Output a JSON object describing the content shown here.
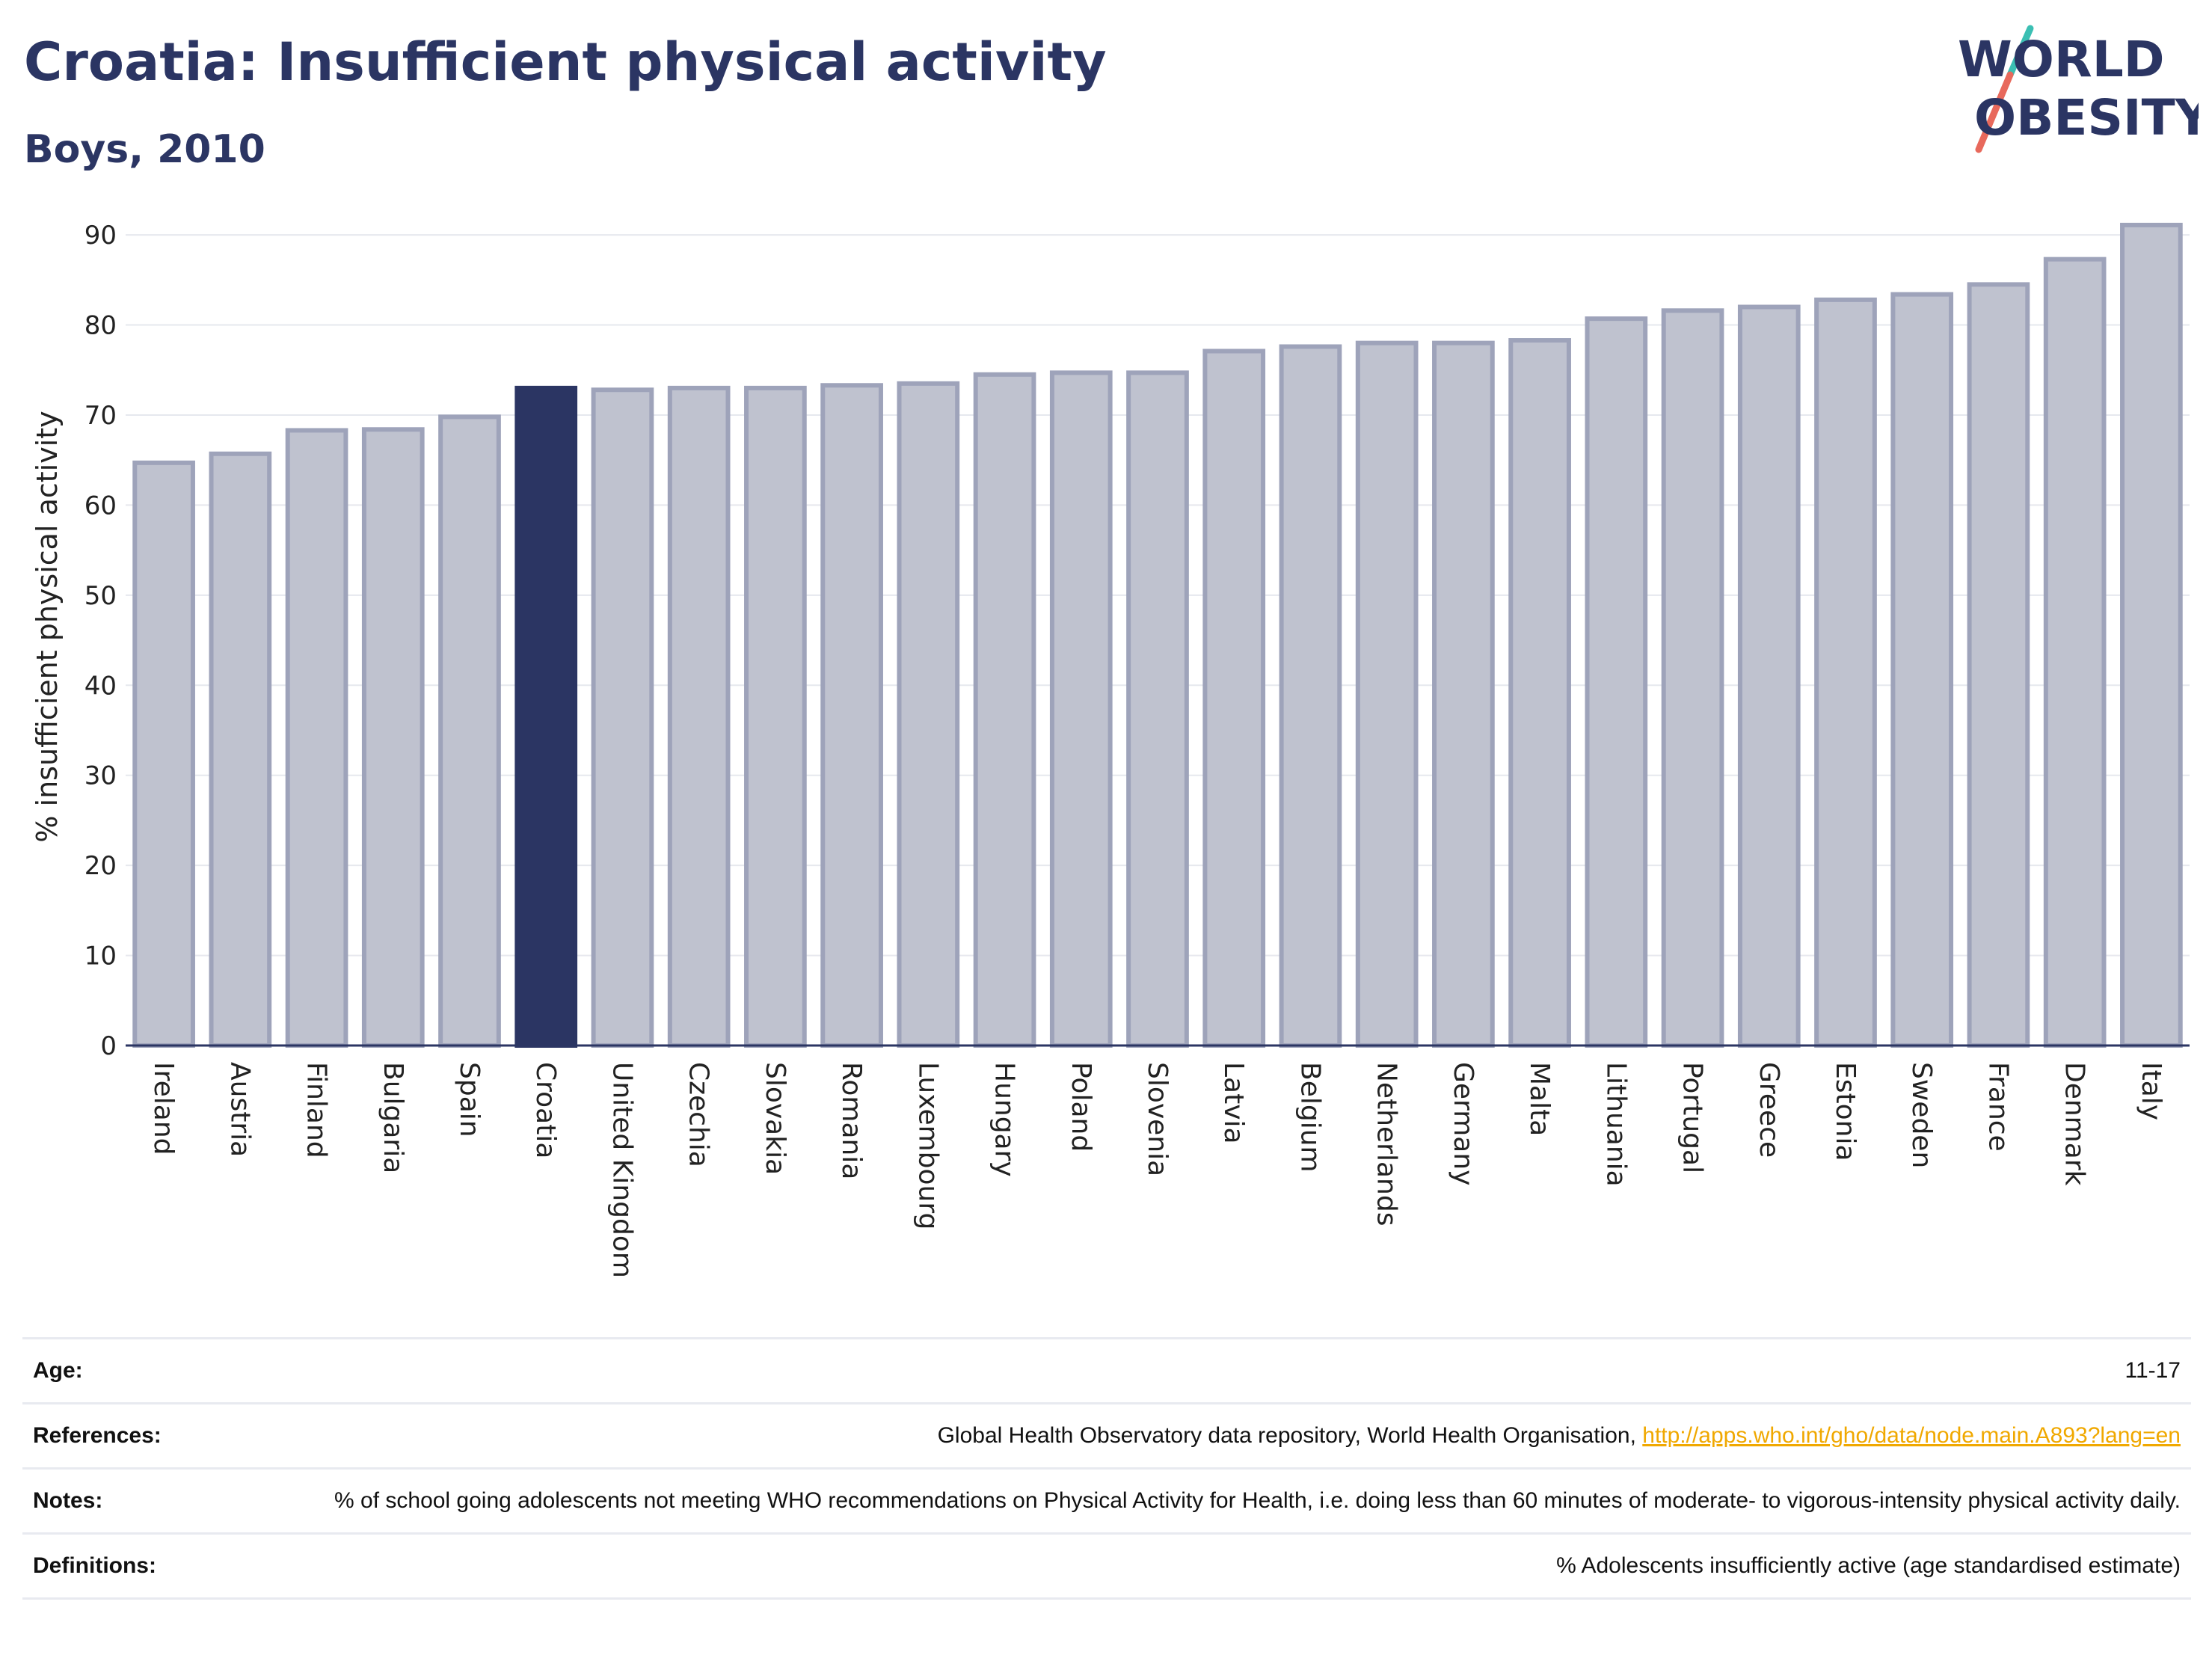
{
  "header": {
    "title": "Croatia: Insufficient physical activity",
    "subtitle": "Boys, 2010"
  },
  "logo": {
    "text_line1": "WORLD",
    "text_line2": "OBESITY",
    "colors": {
      "text": "#2b3563",
      "slash_top": "#3bbfb3",
      "slash_bottom": "#e8695c"
    }
  },
  "chart_data": {
    "type": "bar",
    "ylabel": "% insufficient physical activity",
    "xlabel": "",
    "ylim": [
      0,
      93
    ],
    "yticks": [
      0,
      10,
      20,
      30,
      40,
      50,
      60,
      70,
      80,
      90
    ],
    "grid": true,
    "highlight": "Croatia",
    "colors": {
      "bar": "#bfc2cf",
      "bar_edge": "#9ea3ba",
      "highlight": "#2b3563",
      "grid": "#e6e8ee",
      "axis": "#2b3563"
    },
    "categories": [
      "Ireland",
      "Austria",
      "Finland",
      "Bulgaria",
      "Spain",
      "Croatia",
      "United Kingdom",
      "Czechia",
      "Slovakia",
      "Romania",
      "Luxembourg",
      "Hungary",
      "Poland",
      "Slovenia",
      "Latvia",
      "Belgium",
      "Netherlands",
      "Germany",
      "Malta",
      "Lithuania",
      "Portugal",
      "Greece",
      "Estonia",
      "Sweden",
      "France",
      "Denmark",
      "Italy"
    ],
    "values": [
      64.7,
      65.7,
      68.3,
      68.4,
      69.8,
      73.0,
      72.8,
      73.0,
      73.0,
      73.3,
      73.5,
      74.5,
      74.7,
      74.7,
      77.1,
      77.6,
      78.0,
      78.0,
      78.3,
      80.7,
      81.6,
      82.0,
      82.8,
      83.4,
      84.5,
      87.3,
      91.1
    ]
  },
  "info": {
    "rows": [
      {
        "label": "Age:",
        "value": "11-17"
      },
      {
        "label": "References:",
        "value": "Global Health Observatory data repository, World Health Organisation, ",
        "link": "http://apps.who.int/gho/data/node.main.A893?lang=en"
      },
      {
        "label": "Notes:",
        "value": "% of school going adolescents not meeting WHO recommendations on Physical Activity for Health, i.e. doing less than 60 minutes of moderate- to vigorous-intensity physical activity daily."
      },
      {
        "label": "Definitions:",
        "value": "% Adolescents insufficiently active (age standardised estimate)"
      }
    ]
  }
}
